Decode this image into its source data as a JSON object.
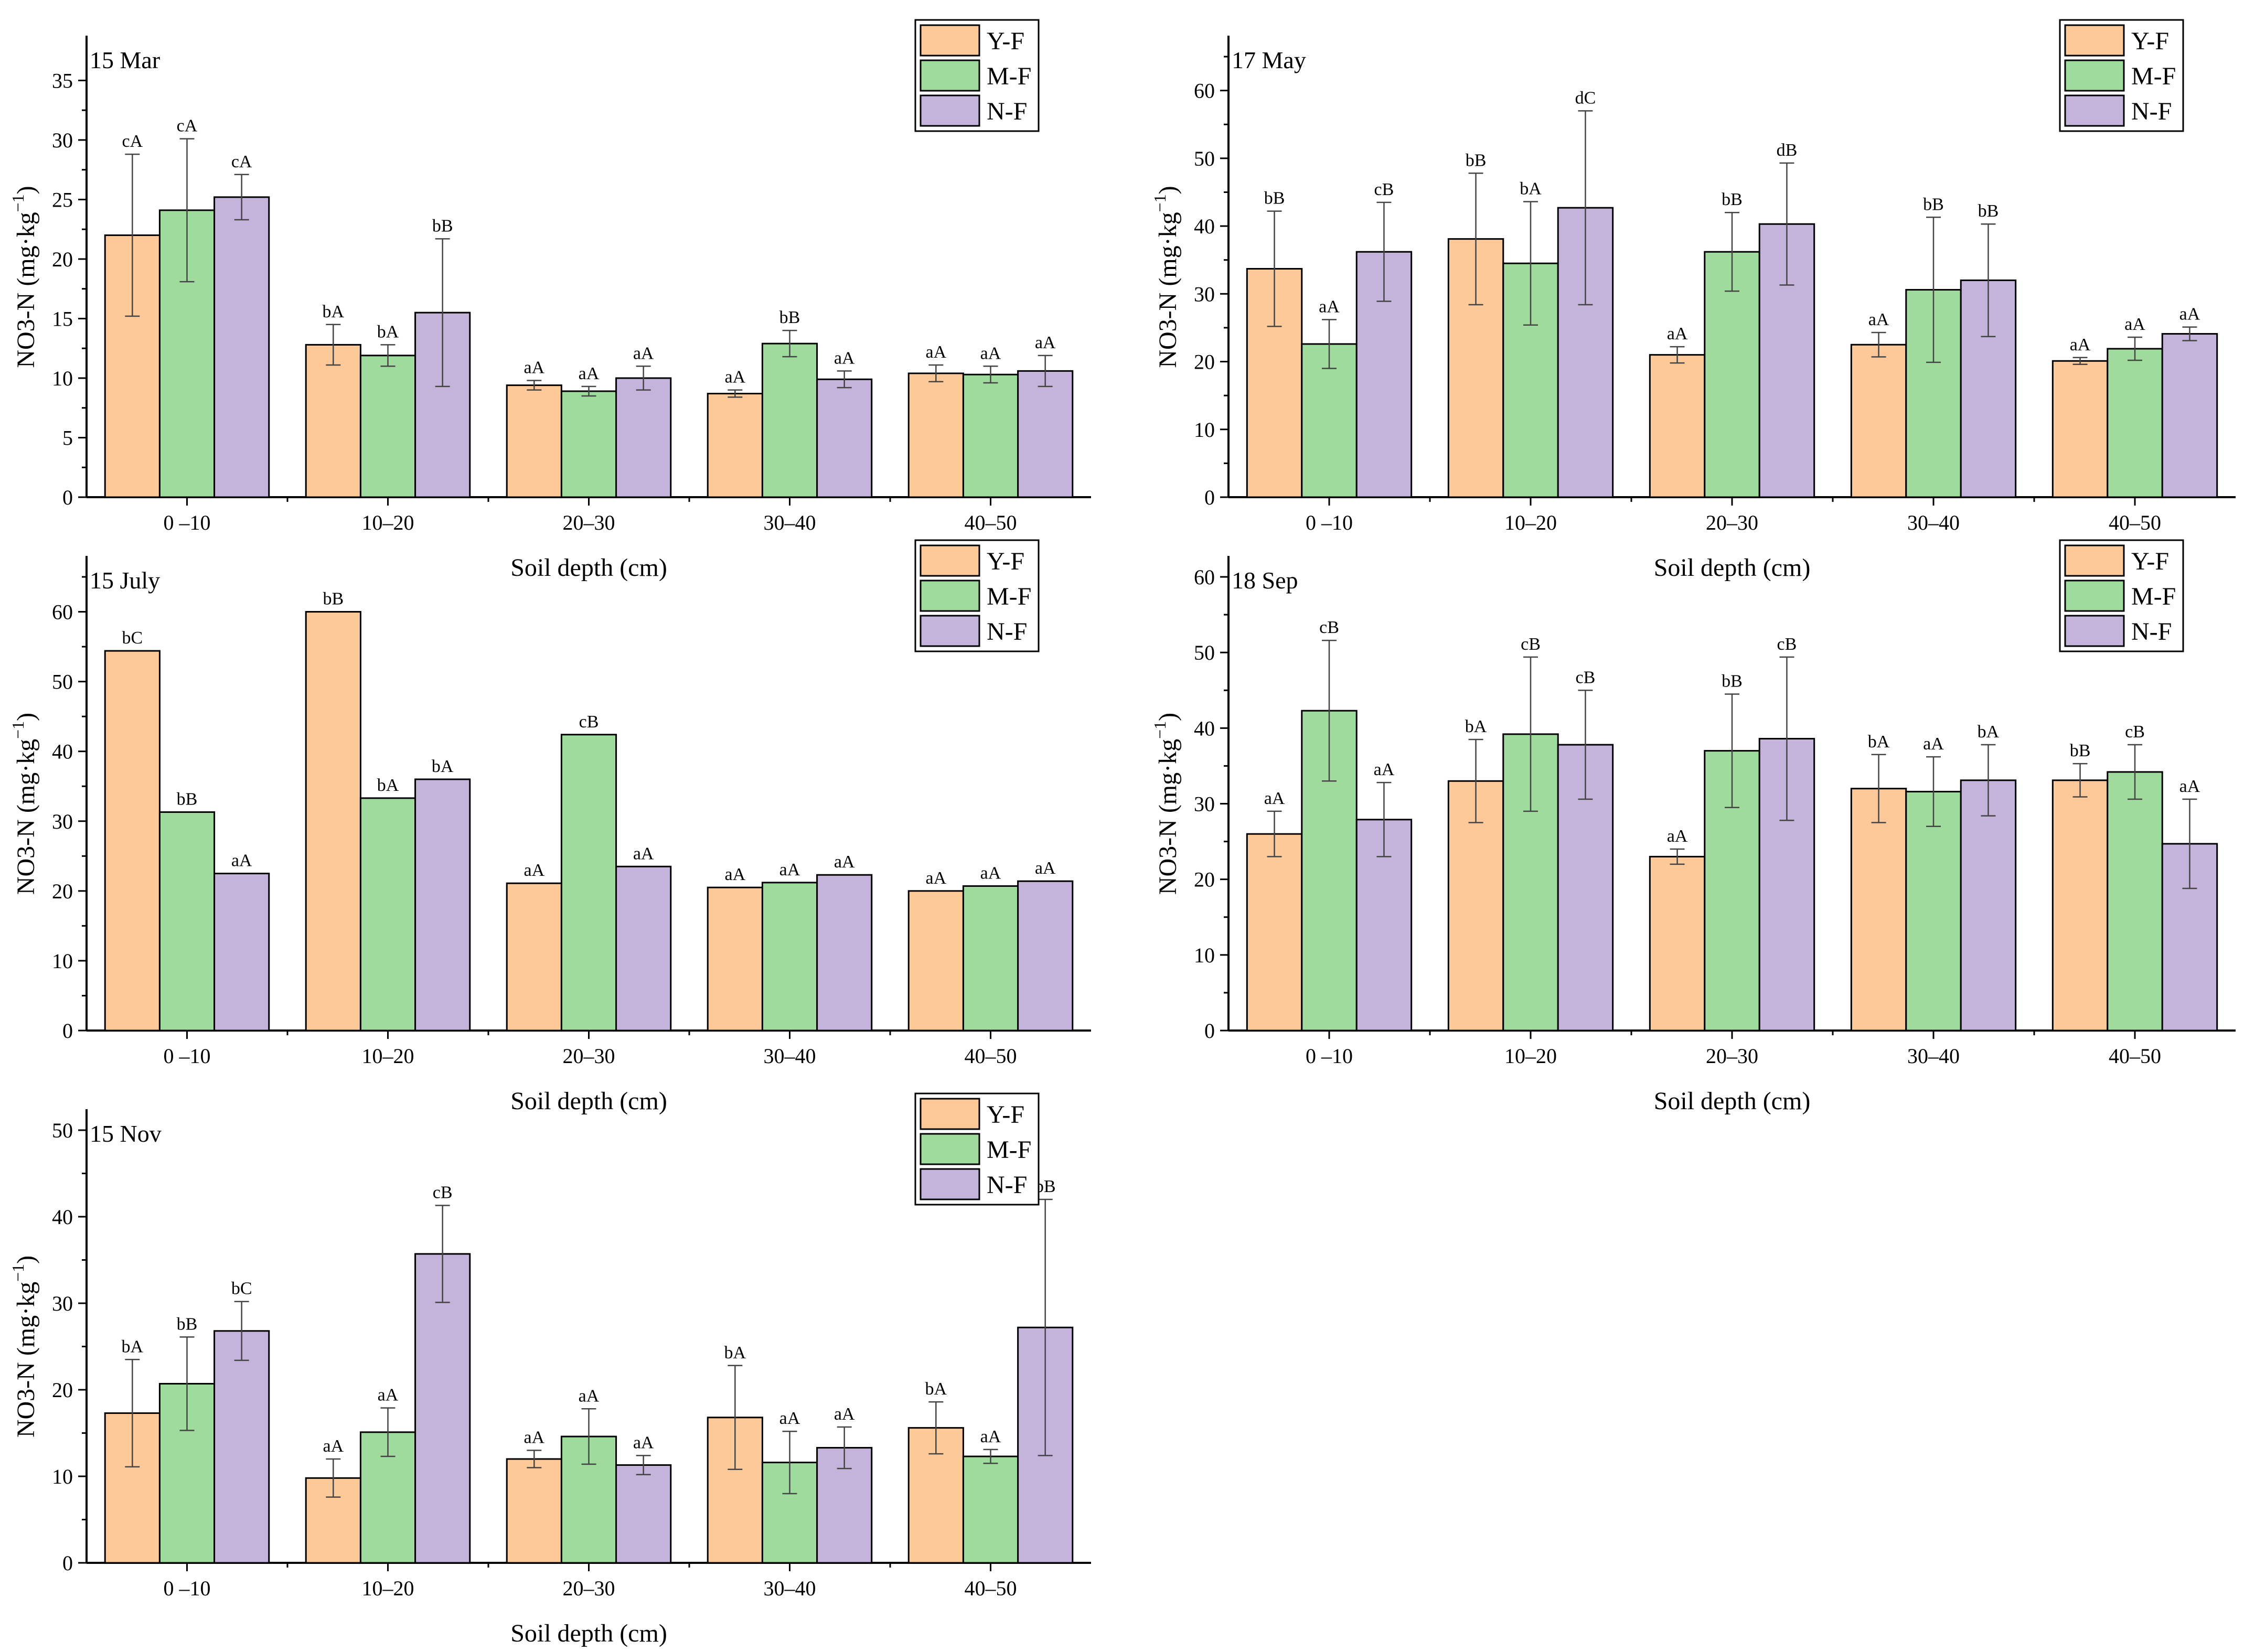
{
  "figure": {
    "legend_labels": [
      "Y-F",
      "M-F",
      "N-F"
    ],
    "colors": {
      "Y-F": "#fdc998",
      "M-F": "#9edb9d",
      "N-F": "#c4b3da",
      "outline": "#000000",
      "error": "#555555"
    }
  },
  "chart_data": [
    {
      "type": "bar",
      "title": "15 Mar",
      "xlabel": "Soil depth (cm)",
      "ylabel": "NO3-N (mg·kg",
      "ylabel_sup": "−1",
      "ylabel_end": ")",
      "categories": [
        "0 –10",
        "10–20",
        "20–30",
        "30–40",
        "40–50"
      ],
      "ylim": [
        0,
        37
      ],
      "yticks": [
        0,
        5,
        10,
        15,
        20,
        25,
        30,
        35
      ],
      "legend": "top-right",
      "series": [
        {
          "name": "Y-F",
          "values": [
            22.0,
            12.8,
            9.4,
            8.7,
            10.4
          ],
          "errors": [
            6.8,
            1.7,
            0.4,
            0.3,
            0.7
          ],
          "labels": [
            "cA",
            "bA",
            "aA",
            "aA",
            "aA"
          ]
        },
        {
          "name": "M-F",
          "values": [
            24.1,
            11.9,
            8.9,
            12.9,
            10.3
          ],
          "errors": [
            6.0,
            0.9,
            0.4,
            1.1,
            0.7
          ],
          "labels": [
            "cA",
            "bA",
            "aA",
            "bB",
            "aA"
          ]
        },
        {
          "name": "N-F",
          "values": [
            25.2,
            15.5,
            10.0,
            9.9,
            10.6
          ],
          "errors": [
            1.9,
            6.2,
            1.0,
            0.7,
            1.3
          ],
          "labels": [
            "cA",
            "bB",
            "aA",
            "aA",
            "aA"
          ]
        }
      ]
    },
    {
      "type": "bar",
      "title": "17 May",
      "xlabel": "Soil depth (cm)",
      "ylabel": "NO3-N (mg·kg",
      "ylabel_sup": "−1",
      "ylabel_end": ")",
      "categories": [
        "0 –10",
        "10–20",
        "20–30",
        "30–40",
        "40–50"
      ],
      "ylim": [
        0,
        65
      ],
      "yticks": [
        0,
        10,
        20,
        30,
        40,
        50,
        60
      ],
      "legend": "top-right",
      "series": [
        {
          "name": "Y-F",
          "values": [
            33.7,
            38.1,
            21.0,
            22.5,
            20.1
          ],
          "errors": [
            8.5,
            9.7,
            1.2,
            1.8,
            0.5
          ],
          "labels": [
            "bB",
            "bB",
            "aA",
            "aA",
            "aA"
          ]
        },
        {
          "name": "M-F",
          "values": [
            22.6,
            34.5,
            36.2,
            30.6,
            21.9
          ],
          "errors": [
            3.6,
            9.1,
            5.8,
            10.7,
            1.7
          ],
          "labels": [
            "aA",
            "bA",
            "bB",
            "bB",
            "aA"
          ]
        },
        {
          "name": "N-F",
          "values": [
            36.2,
            42.7,
            40.3,
            32.0,
            24.1
          ],
          "errors": [
            7.3,
            14.3,
            9.0,
            8.3,
            1.0
          ],
          "labels": [
            "cB",
            "dC",
            "dB",
            "bB",
            "aA"
          ]
        }
      ]
    },
    {
      "type": "bar",
      "title": "15 July",
      "xlabel": "Soil depth (cm)",
      "ylabel": "NO3-N (mg·kg",
      "ylabel_sup": "−1",
      "ylabel_end": ")",
      "categories": [
        "0 –10",
        "10–20",
        "20–30",
        "30–40",
        "40–50"
      ],
      "ylim": [
        0,
        65
      ],
      "yticks": [
        0,
        10,
        20,
        30,
        40,
        50,
        60
      ],
      "legend": "top-right",
      "series": [
        {
          "name": "Y-F",
          "values": [
            54.4,
            60.0,
            21.1,
            20.5,
            20.0
          ],
          "errors": [
            0,
            0,
            0,
            0,
            0
          ],
          "labels": [
            "bC",
            "bB",
            "aA",
            "aA",
            "aA"
          ]
        },
        {
          "name": "M-F",
          "values": [
            31.3,
            33.3,
            42.4,
            21.2,
            20.7
          ],
          "errors": [
            0,
            0,
            0,
            0,
            0
          ],
          "labels": [
            "bB",
            "bA",
            "cB",
            "aA",
            "aA"
          ]
        },
        {
          "name": "N-F",
          "values": [
            22.5,
            36.0,
            23.5,
            22.3,
            21.4
          ],
          "errors": [
            0,
            0,
            0,
            0,
            0
          ],
          "labels": [
            "aA",
            "bA",
            "aA",
            "aA",
            "aA"
          ]
        }
      ]
    },
    {
      "type": "bar",
      "title": "18 Sep",
      "xlabel": "Soil depth (cm)",
      "ylabel": "NO3-N (mg·kg",
      "ylabel_sup": "−1",
      "ylabel_end": ")",
      "categories": [
        "0 –10",
        "10–20",
        "20–30",
        "30–40",
        "40–50"
      ],
      "ylim": [
        0,
        60
      ],
      "yticks": [
        0,
        10,
        20,
        30,
        40,
        50,
        60
      ],
      "legend": "top-right",
      "series": [
        {
          "name": "Y-F",
          "values": [
            26.0,
            33.0,
            23.0,
            32.0,
            33.1
          ],
          "errors": [
            3.0,
            5.5,
            1.0,
            4.5,
            2.2
          ],
          "labels": [
            "aA",
            "bA",
            "aA",
            "bA",
            "bB"
          ]
        },
        {
          "name": "M-F",
          "values": [
            42.3,
            39.2,
            37.0,
            31.6,
            34.2
          ],
          "errors": [
            9.3,
            10.2,
            7.5,
            4.6,
            3.6
          ],
          "labels": [
            "cB",
            "cB",
            "bB",
            "aA",
            "cB"
          ]
        },
        {
          "name": "N-F",
          "values": [
            27.9,
            37.8,
            38.6,
            33.1,
            24.7
          ],
          "errors": [
            4.9,
            7.2,
            10.8,
            4.7,
            5.9
          ],
          "labels": [
            "aA",
            "cB",
            "cB",
            "bA",
            "aA"
          ]
        }
      ]
    },
    {
      "type": "bar",
      "title": "15 Nov",
      "xlabel": "Soil depth (cm)",
      "ylabel": "NO3-N (mg·kg",
      "ylabel_sup": "−1",
      "ylabel_end": ")",
      "categories": [
        "0 –10",
        "10–20",
        "20–30",
        "30–40",
        "40–50"
      ],
      "ylim": [
        0,
        50
      ],
      "yticks": [
        0,
        10,
        20,
        30,
        40,
        50
      ],
      "legend": "top-right",
      "series": [
        {
          "name": "Y-F",
          "values": [
            17.3,
            9.8,
            12.0,
            16.8,
            15.6
          ],
          "errors": [
            6.2,
            2.2,
            1.0,
            6.0,
            3.0
          ],
          "labels": [
            "bA",
            "aA",
            "aA",
            "bA",
            "bA"
          ]
        },
        {
          "name": "M-F",
          "values": [
            20.7,
            15.1,
            14.6,
            11.6,
            12.3
          ],
          "errors": [
            5.4,
            2.8,
            3.2,
            3.6,
            0.8
          ],
          "labels": [
            "bB",
            "aA",
            "aA",
            "aA",
            "aA"
          ]
        },
        {
          "name": "N-F",
          "values": [
            26.8,
            35.7,
            11.3,
            13.3,
            27.2
          ],
          "errors": [
            3.4,
            5.6,
            1.1,
            2.4,
            14.8
          ],
          "labels": [
            "bC",
            "cB",
            "aA",
            "aA",
            "bB"
          ]
        }
      ]
    }
  ]
}
